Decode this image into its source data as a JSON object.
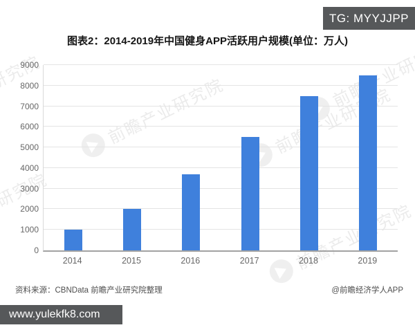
{
  "overlay": {
    "tg_badge": "TG: MYYJJPP",
    "footer_banner": "www.yulekfk8.com"
  },
  "chart_data": {
    "type": "bar",
    "title": "图表2：2014-2019年中国健身APP活跃用户规模(单位：万人)",
    "categories": [
      "2014",
      "2015",
      "2016",
      "2017",
      "2018",
      "2019"
    ],
    "values": [
      1000,
      2000,
      3700,
      5500,
      7500,
      8500
    ],
    "unit": "万人",
    "xlabel": "",
    "ylabel": "",
    "ylim": [
      0,
      9000
    ],
    "yticks": [
      0,
      1000,
      2000,
      3000,
      4000,
      5000,
      6000,
      7000,
      8000,
      9000
    ],
    "grid": true,
    "legend": "none",
    "bar_color": "#3f80dc"
  },
  "footer": {
    "source": "资料来源：CBNData 前瞻产业研究院整理",
    "credit": "@前瞻经济学人APP"
  },
  "watermark": {
    "text": "前瞻产业研究院",
    "logo": "qianzhan-logo-icon"
  },
  "colors": {
    "bar": "#3f80dc",
    "banner_bg": "#56585a",
    "grid_line": "#e4e4e4",
    "axis_line": "#a2a2a2",
    "tick_text": "#666666"
  }
}
